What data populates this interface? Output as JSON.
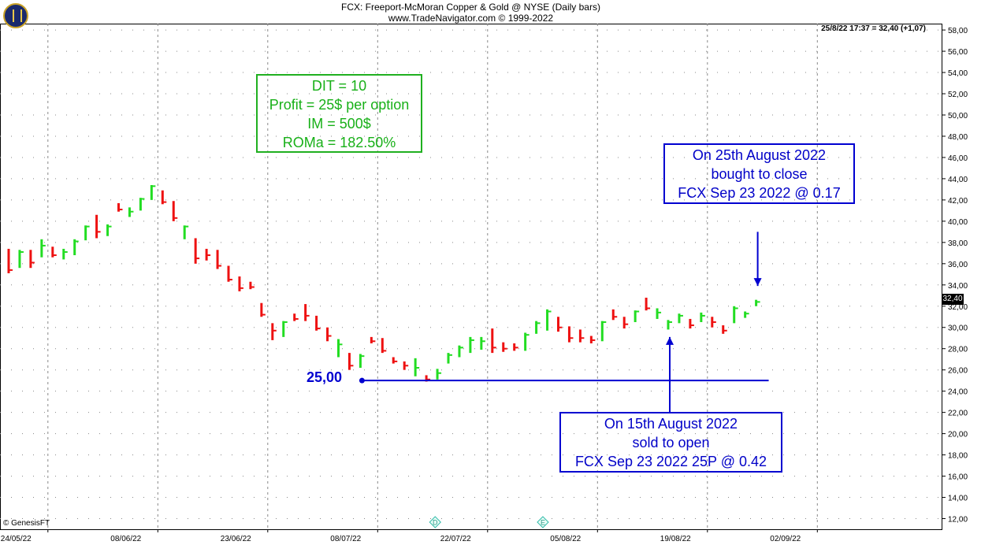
{
  "header": {
    "title": "FCX:  Freeport-McMoran Copper & Gold @ NYSE  (Daily bars)",
    "subtitle": "www.TradeNavigator.com © 1999-2022",
    "readout": "25/8/22 17:37 = 32,40 (+1,07)",
    "last_price_tag": "32,40"
  },
  "footer": {
    "credit": "© GenesisFT",
    "event_markers": [
      "D",
      "E"
    ]
  },
  "colors": {
    "up_bar": "#22dd22",
    "down_bar": "#ee1111",
    "annotation_blue": "#0000d0",
    "stats_green": "#18b018",
    "grid": "#888888"
  },
  "annotations": {
    "stats": [
      "DIT = 10",
      "Profit = 25$ per option",
      "IM = 500$",
      "ROMa = 182.50%"
    ],
    "close_trade": [
      "On 25th August 2022",
      "bought to close",
      "FCX Sep 23 2022 @ 0.17"
    ],
    "open_trade": [
      "On 15th August 2022",
      "sold to open",
      "FCX Sep 23 2022 25P @ 0.42"
    ],
    "level_label": "25,00"
  },
  "chart_data": {
    "type": "ohlc",
    "y_axis": {
      "min": 11,
      "max": 58.6,
      "tick_labels": [
        "12,00",
        "14,00",
        "16,00",
        "18,00",
        "20,00",
        "22,00",
        "24,00",
        "26,00",
        "28,00",
        "30,00",
        "32,00",
        "34,00",
        "36,00",
        "38,00",
        "40,00",
        "42,00",
        "44,00",
        "46,00",
        "48,00",
        "50,00",
        "52,00",
        "54,00",
        "56,00",
        "58,00"
      ],
      "tick_values": [
        12,
        14,
        16,
        18,
        20,
        22,
        24,
        26,
        28,
        30,
        32,
        34,
        36,
        38,
        40,
        42,
        44,
        46,
        48,
        50,
        52,
        54,
        56,
        58
      ],
      "position": "right"
    },
    "x_axis": {
      "tick_labels": [
        "24/05/22",
        "08/06/22",
        "23/06/22",
        "08/07/22",
        "22/07/22",
        "05/08/22",
        "19/08/22",
        "02/09/22"
      ],
      "tick_bar_index": [
        4,
        14,
        24,
        34,
        44,
        54,
        64,
        74
      ]
    },
    "grid": true,
    "bars": [
      {
        "date": "2022-05-19",
        "high": 37.4,
        "low": 35.1,
        "close": 35.4,
        "dir": "down"
      },
      {
        "date": "2022-05-20",
        "high": 37.3,
        "low": 35.6,
        "close": 37.1,
        "dir": "up"
      },
      {
        "date": "2022-05-23",
        "high": 37.3,
        "low": 35.6,
        "close": 36.1,
        "dir": "down"
      },
      {
        "date": "2022-05-24",
        "high": 38.3,
        "low": 36.6,
        "close": 37.7,
        "dir": "up"
      },
      {
        "date": "2022-05-25",
        "high": 37.6,
        "low": 36.6,
        "close": 36.8,
        "dir": "down"
      },
      {
        "date": "2022-05-26",
        "high": 37.4,
        "low": 36.4,
        "close": 37.1,
        "dir": "up"
      },
      {
        "date": "2022-05-27",
        "high": 38.3,
        "low": 36.8,
        "close": 38.1,
        "dir": "up"
      },
      {
        "date": "2022-05-31",
        "high": 39.6,
        "low": 38.2,
        "close": 39.5,
        "dir": "up"
      },
      {
        "date": "2022-06-01",
        "high": 40.6,
        "low": 38.4,
        "close": 39.0,
        "dir": "down"
      },
      {
        "date": "2022-06-02",
        "high": 39.7,
        "low": 38.6,
        "close": 39.5,
        "dir": "up"
      },
      {
        "date": "2022-06-03",
        "high": 41.7,
        "low": 40.9,
        "close": 41.1,
        "dir": "down"
      },
      {
        "date": "2022-06-06",
        "high": 41.3,
        "low": 40.4,
        "close": 40.9,
        "dir": "up"
      },
      {
        "date": "2022-06-07",
        "high": 42.2,
        "low": 41.0,
        "close": 42.1,
        "dir": "up"
      },
      {
        "date": "2022-06-08",
        "high": 43.4,
        "low": 42.0,
        "close": 43.3,
        "dir": "up"
      },
      {
        "date": "2022-06-09",
        "high": 42.9,
        "low": 41.6,
        "close": 41.8,
        "dir": "down"
      },
      {
        "date": "2022-06-10",
        "high": 41.9,
        "low": 40.0,
        "close": 40.3,
        "dir": "down"
      },
      {
        "date": "2022-06-13",
        "high": 39.6,
        "low": 38.3,
        "close": 39.5,
        "dir": "up"
      },
      {
        "date": "2022-06-14",
        "high": 38.4,
        "low": 36.0,
        "close": 36.5,
        "dir": "down"
      },
      {
        "date": "2022-06-15",
        "high": 37.4,
        "low": 36.3,
        "close": 36.8,
        "dir": "down"
      },
      {
        "date": "2022-06-16",
        "high": 37.3,
        "low": 35.5,
        "close": 35.8,
        "dir": "down"
      },
      {
        "date": "2022-06-17",
        "high": 35.8,
        "low": 34.3,
        "close": 34.5,
        "dir": "down"
      },
      {
        "date": "2022-06-21",
        "high": 34.8,
        "low": 33.4,
        "close": 33.7,
        "dir": "down"
      },
      {
        "date": "2022-06-22",
        "high": 34.3,
        "low": 33.6,
        "close": 33.8,
        "dir": "down"
      },
      {
        "date": "2022-06-23",
        "high": 32.3,
        "low": 31.0,
        "close": 31.2,
        "dir": "down"
      },
      {
        "date": "2022-06-24",
        "high": 30.4,
        "low": 28.8,
        "close": 29.7,
        "dir": "down"
      },
      {
        "date": "2022-06-27",
        "high": 30.6,
        "low": 29.1,
        "close": 30.5,
        "dir": "up"
      },
      {
        "date": "2022-06-28",
        "high": 31.3,
        "low": 30.6,
        "close": 30.8,
        "dir": "down"
      },
      {
        "date": "2022-06-29",
        "high": 32.2,
        "low": 30.6,
        "close": 31.1,
        "dir": "down"
      },
      {
        "date": "2022-06-30",
        "high": 31.1,
        "low": 29.7,
        "close": 29.9,
        "dir": "down"
      },
      {
        "date": "2022-07-01",
        "high": 30.0,
        "low": 28.7,
        "close": 29.2,
        "dir": "down"
      },
      {
        "date": "2022-07-05",
        "high": 28.9,
        "low": 27.2,
        "close": 28.4,
        "dir": "up"
      },
      {
        "date": "2022-07-06",
        "high": 27.6,
        "low": 26.0,
        "close": 26.4,
        "dir": "down"
      },
      {
        "date": "2022-07-07",
        "high": 27.5,
        "low": 26.2,
        "close": 27.3,
        "dir": "up"
      },
      {
        "date": "2022-07-08",
        "high": 29.1,
        "low": 28.5,
        "close": 28.7,
        "dir": "down"
      },
      {
        "date": "2022-07-11",
        "high": 29.0,
        "low": 27.6,
        "close": 27.8,
        "dir": "down"
      },
      {
        "date": "2022-07-12",
        "high": 27.2,
        "low": 26.6,
        "close": 26.8,
        "dir": "down"
      },
      {
        "date": "2022-07-13",
        "high": 26.8,
        "low": 26.0,
        "close": 26.4,
        "dir": "down"
      },
      {
        "date": "2022-07-14",
        "high": 27.1,
        "low": 25.4,
        "close": 26.2,
        "dir": "up"
      },
      {
        "date": "2022-07-15",
        "high": 25.5,
        "low": 24.9,
        "close": 25.1,
        "dir": "down"
      },
      {
        "date": "2022-07-18",
        "high": 26.1,
        "low": 25.1,
        "close": 25.7,
        "dir": "up"
      },
      {
        "date": "2022-07-19",
        "high": 27.6,
        "low": 26.6,
        "close": 27.4,
        "dir": "up"
      },
      {
        "date": "2022-07-20",
        "high": 28.3,
        "low": 27.2,
        "close": 28.1,
        "dir": "up"
      },
      {
        "date": "2022-07-21",
        "high": 29.1,
        "low": 27.6,
        "close": 28.8,
        "dir": "up"
      },
      {
        "date": "2022-07-22",
        "high": 29.1,
        "low": 27.9,
        "close": 28.7,
        "dir": "up"
      },
      {
        "date": "2022-07-25",
        "high": 29.9,
        "low": 27.6,
        "close": 28.1,
        "dir": "down"
      },
      {
        "date": "2022-07-26",
        "high": 28.6,
        "low": 27.7,
        "close": 28.0,
        "dir": "down"
      },
      {
        "date": "2022-07-27",
        "high": 28.5,
        "low": 27.8,
        "close": 28.1,
        "dir": "down"
      },
      {
        "date": "2022-07-28",
        "high": 29.5,
        "low": 27.8,
        "close": 29.3,
        "dir": "up"
      },
      {
        "date": "2022-07-29",
        "high": 30.6,
        "low": 29.4,
        "close": 30.4,
        "dir": "up"
      },
      {
        "date": "2022-08-01",
        "high": 31.7,
        "low": 29.7,
        "close": 31.5,
        "dir": "up"
      },
      {
        "date": "2022-08-02",
        "high": 31.0,
        "low": 29.6,
        "close": 30.0,
        "dir": "down"
      },
      {
        "date": "2022-08-03",
        "high": 30.1,
        "low": 28.6,
        "close": 29.0,
        "dir": "down"
      },
      {
        "date": "2022-08-04",
        "high": 29.8,
        "low": 28.6,
        "close": 29.0,
        "dir": "down"
      },
      {
        "date": "2022-08-05",
        "high": 29.2,
        "low": 28.5,
        "close": 28.8,
        "dir": "down"
      },
      {
        "date": "2022-08-08",
        "high": 30.6,
        "low": 28.7,
        "close": 30.5,
        "dir": "up"
      },
      {
        "date": "2022-08-09",
        "high": 31.7,
        "low": 30.7,
        "close": 31.0,
        "dir": "down"
      },
      {
        "date": "2022-08-10",
        "high": 31.0,
        "low": 29.9,
        "close": 30.3,
        "dir": "down"
      },
      {
        "date": "2022-08-11",
        "high": 31.6,
        "low": 30.5,
        "close": 31.5,
        "dir": "up"
      },
      {
        "date": "2022-08-12",
        "high": 32.8,
        "low": 31.6,
        "close": 31.8,
        "dir": "down"
      },
      {
        "date": "2022-08-15",
        "high": 31.8,
        "low": 30.8,
        "close": 31.4,
        "dir": "up"
      },
      {
        "date": "2022-08-16",
        "high": 30.7,
        "low": 29.8,
        "close": 30.5,
        "dir": "up"
      },
      {
        "date": "2022-08-17",
        "high": 31.3,
        "low": 30.4,
        "close": 31.1,
        "dir": "up"
      },
      {
        "date": "2022-08-18",
        "high": 30.8,
        "low": 29.9,
        "close": 30.2,
        "dir": "down"
      },
      {
        "date": "2022-08-19",
        "high": 31.4,
        "low": 30.5,
        "close": 31.1,
        "dir": "up"
      },
      {
        "date": "2022-08-22",
        "high": 31.0,
        "low": 30.0,
        "close": 30.5,
        "dir": "down"
      },
      {
        "date": "2022-08-23",
        "high": 30.2,
        "low": 29.4,
        "close": 29.7,
        "dir": "down"
      },
      {
        "date": "2022-08-24",
        "high": 32.0,
        "low": 30.4,
        "close": 31.8,
        "dir": "up"
      },
      {
        "date": "2022-08-25",
        "high": 31.5,
        "low": 30.9,
        "close": 31.3,
        "dir": "up"
      },
      {
        "date": "2022-08-26",
        "high": 32.6,
        "low": 32.0,
        "close": 32.4,
        "dir": "up"
      }
    ],
    "level": {
      "value": 25.0,
      "start_bar": 32,
      "end_bar": 69
    },
    "arrows": [
      {
        "from_value": 39.0,
        "to_value": 33.9,
        "bar": 68,
        "to": "close_trade"
      },
      {
        "from_value": 22.0,
        "to_value": 29.1,
        "bar": 60,
        "to": "open_trade"
      }
    ]
  }
}
